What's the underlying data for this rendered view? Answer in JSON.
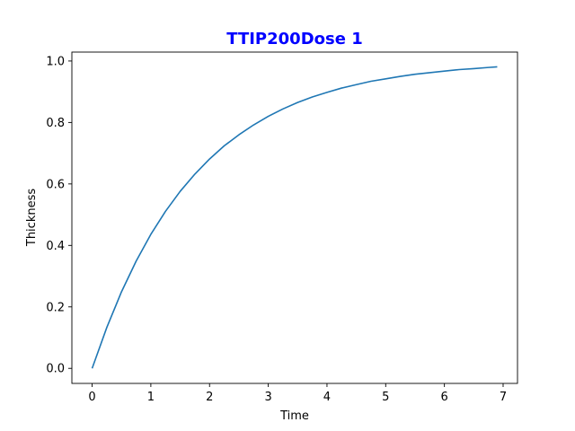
{
  "colors": {
    "title": "#0000ff",
    "line": "#1f77b4",
    "axis": "#000000",
    "background": "#ffffff"
  },
  "chart_data": {
    "type": "line",
    "title": "TTIP200Dose 1",
    "xlabel": "Time",
    "ylabel": "Thickness",
    "xlim": [
      -0.345,
      7.245
    ],
    "ylim": [
      -0.049,
      1.029
    ],
    "xticks": [
      0,
      1,
      2,
      3,
      4,
      5,
      6,
      7
    ],
    "yticks": [
      0.0,
      0.2,
      0.4,
      0.6,
      0.8,
      1.0
    ],
    "xtick_labels": [
      "0",
      "1",
      "2",
      "3",
      "4",
      "5",
      "6",
      "7"
    ],
    "ytick_labels": [
      "0.0",
      "0.2",
      "0.4",
      "0.6",
      "0.8",
      "1.0"
    ],
    "grid": false,
    "legend": "none",
    "series": [
      {
        "x": [
          0,
          0.25,
          0.5,
          0.75,
          1.0,
          1.25,
          1.5,
          1.75,
          2.0,
          2.25,
          2.5,
          2.75,
          3.0,
          3.25,
          3.5,
          3.75,
          4.0,
          4.25,
          4.5,
          4.75,
          5.0,
          5.25,
          5.5,
          5.75,
          6.0,
          6.25,
          6.5,
          6.75,
          6.9
        ],
        "y": [
          0.0,
          0.133,
          0.249,
          0.349,
          0.436,
          0.511,
          0.576,
          0.632,
          0.681,
          0.724,
          0.76,
          0.792,
          0.82,
          0.844,
          0.865,
          0.883,
          0.898,
          0.912,
          0.923,
          0.934,
          0.942,
          0.95,
          0.957,
          0.962,
          0.967,
          0.972,
          0.975,
          0.979,
          0.981
        ]
      }
    ]
  }
}
